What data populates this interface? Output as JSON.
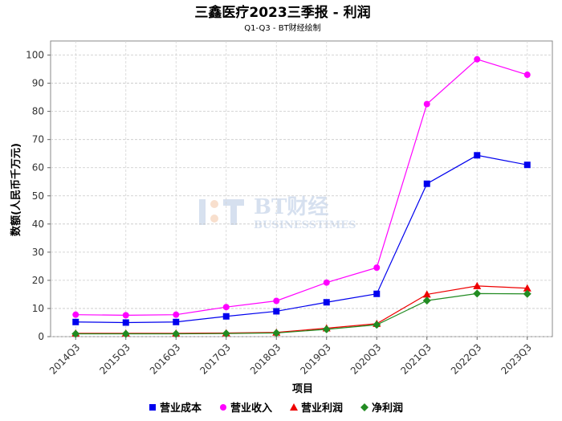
{
  "chart_data": {
    "type": "line",
    "title": "三鑫医疗2023三季报 - 利润",
    "subtitle": "Q1-Q3 - BT财经绘制",
    "xlabel": "项目",
    "ylabel": "数额(人民币千万元)",
    "ylim": [
      0,
      105
    ],
    "yticks": [
      0,
      10,
      20,
      30,
      40,
      50,
      60,
      70,
      80,
      90,
      100
    ],
    "categories": [
      "2014Q3",
      "2015Q3",
      "2016Q3",
      "2017Q3",
      "2018Q3",
      "2019Q3",
      "2020Q3",
      "2021Q3",
      "2022Q3",
      "2023Q3"
    ],
    "grid": true,
    "legend_position": "bottom",
    "series": [
      {
        "name": "营业成本",
        "color": "#0000ee",
        "marker": "square",
        "values": [
          5.2,
          5.0,
          5.2,
          7.2,
          9.0,
          12.2,
          15.2,
          54.3,
          64.4,
          61.0
        ]
      },
      {
        "name": "营业收入",
        "color": "#ff00ff",
        "marker": "circle",
        "values": [
          7.8,
          7.6,
          7.8,
          10.5,
          12.7,
          19.2,
          24.5,
          82.6,
          98.5,
          93.0
        ]
      },
      {
        "name": "营业利润",
        "color": "#ee0000",
        "marker": "triangle",
        "values": [
          1.2,
          1.2,
          1.2,
          1.3,
          1.5,
          3.0,
          4.6,
          15.0,
          18.0,
          17.2
        ]
      },
      {
        "name": "净利润",
        "color": "#228b22",
        "marker": "diamond",
        "values": [
          1.0,
          1.0,
          1.0,
          1.1,
          1.3,
          2.6,
          4.2,
          12.8,
          15.3,
          15.2
        ]
      }
    ]
  },
  "watermark": {
    "title": "BT财经",
    "subtitle": "BUSINESSTIMES"
  }
}
